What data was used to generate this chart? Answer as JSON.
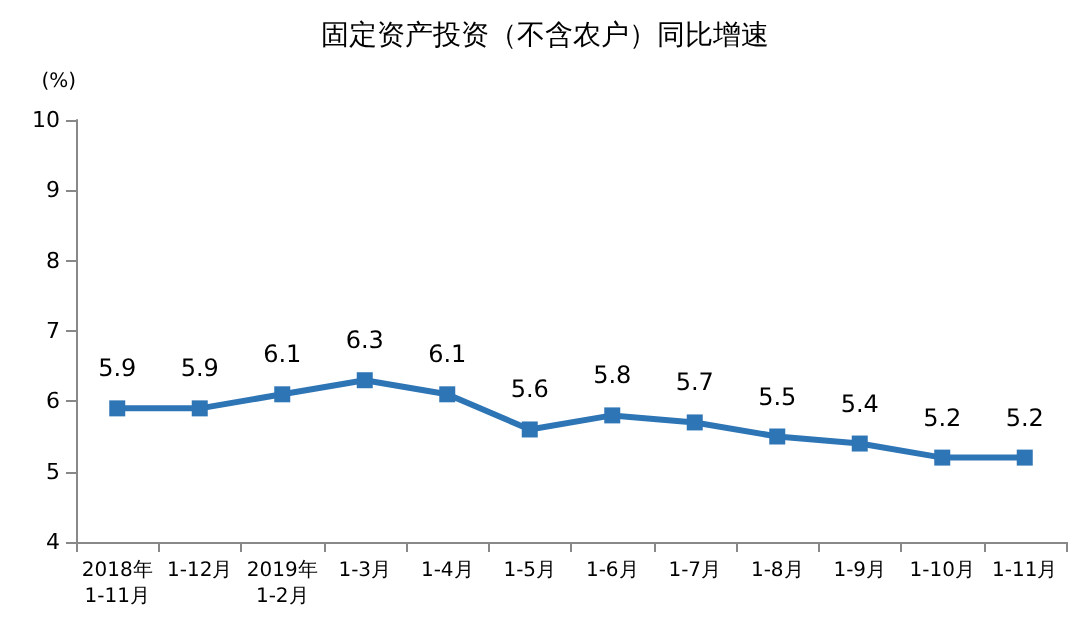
{
  "chart_data": {
    "type": "line",
    "title": "固定资产投资（不含农户）同比增速",
    "ylabel": "(%)",
    "categories": [
      "2018年\n1-11月",
      "1-12月",
      "2019年\n1-2月",
      "1-3月",
      "1-4月",
      "1-5月",
      "1-6月",
      "1-7月",
      "1-8月",
      "1-9月",
      "1-10月",
      "1-11月"
    ],
    "series": [
      {
        "color": "#2e75b6",
        "values": [
          5.9,
          5.9,
          6.1,
          6.3,
          6.1,
          5.6,
          5.8,
          5.7,
          5.5,
          5.4,
          5.2,
          5.2
        ]
      }
    ],
    "ylim": [
      4,
      10
    ],
    "yticks": [
      4,
      5,
      6,
      7,
      8,
      9,
      10
    ],
    "grid": false,
    "marker": "square",
    "line_style": "solid",
    "data_labels": true
  }
}
